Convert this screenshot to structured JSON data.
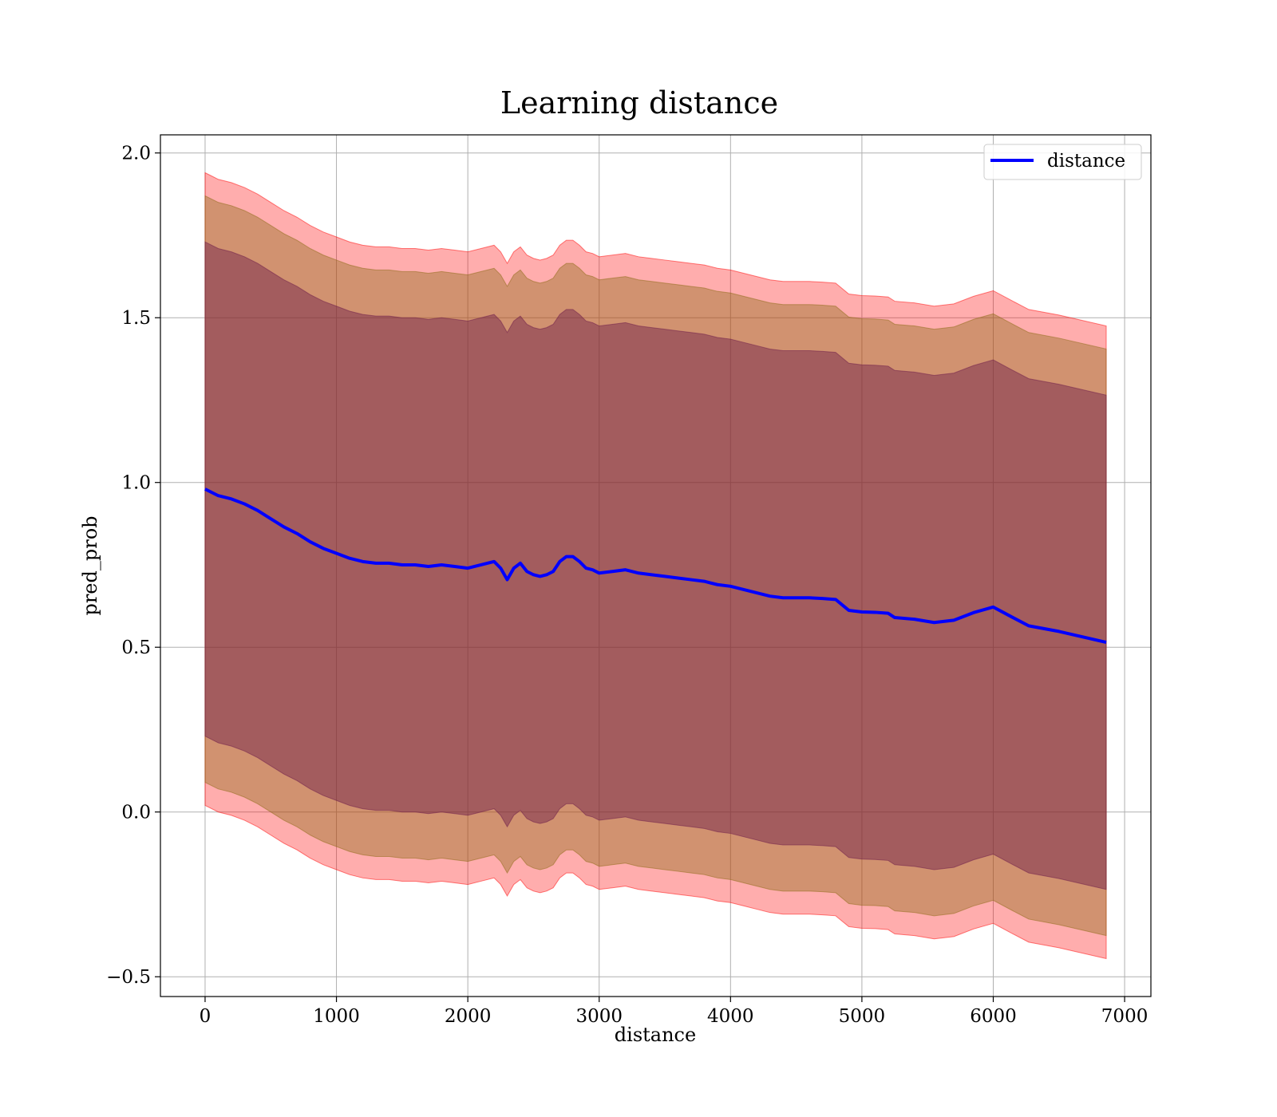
{
  "chart_data": {
    "type": "line",
    "title": "Learning distance",
    "xlabel": "distance",
    "ylabel": "pred_prob",
    "xlim": [
      -340,
      7200
    ],
    "ylim": [
      -0.56,
      2.055
    ],
    "xticks": [
      0,
      1000,
      2000,
      3000,
      4000,
      5000,
      6000,
      7000
    ],
    "xtick_labels": [
      "0",
      "1000",
      "2000",
      "3000",
      "4000",
      "5000",
      "6000",
      "7000"
    ],
    "yticks": [
      -0.5,
      0.0,
      0.5,
      1.0,
      1.5,
      2.0
    ],
    "ytick_labels": [
      "−0.5",
      "0.0",
      "0.5",
      "1.0",
      "1.5",
      "2.0"
    ],
    "grid": true,
    "legend": {
      "position": "top-right",
      "entries": [
        "distance"
      ]
    },
    "colors": {
      "line": "#0000ff",
      "band_outer": "#ff0000",
      "band_mid": "#8b6914",
      "band_inner": "#6b1a4a"
    },
    "series": [
      {
        "name": "distance",
        "x": [
          0,
          50,
          100,
          200,
          300,
          400,
          500,
          600,
          700,
          800,
          900,
          1000,
          1100,
          1200,
          1300,
          1400,
          1500,
          1600,
          1700,
          1800,
          1900,
          2000,
          2100,
          2200,
          2250,
          2300,
          2350,
          2400,
          2450,
          2500,
          2550,
          2600,
          2650,
          2700,
          2750,
          2800,
          2850,
          2900,
          2950,
          3000,
          3100,
          3200,
          3300,
          3400,
          3500,
          3600,
          3700,
          3800,
          3900,
          4000,
          4100,
          4200,
          4300,
          4400,
          4500,
          4600,
          4700,
          4800,
          4900,
          5000,
          5100,
          5200,
          5250,
          5400,
          5550,
          5700,
          5850,
          6000,
          6150,
          6270,
          6500,
          6860
        ],
        "y": [
          0.98,
          0.97,
          0.96,
          0.95,
          0.935,
          0.915,
          0.89,
          0.865,
          0.845,
          0.82,
          0.8,
          0.785,
          0.77,
          0.76,
          0.755,
          0.755,
          0.75,
          0.75,
          0.745,
          0.75,
          0.745,
          0.74,
          0.75,
          0.76,
          0.74,
          0.705,
          0.74,
          0.755,
          0.73,
          0.72,
          0.715,
          0.72,
          0.73,
          0.76,
          0.775,
          0.775,
          0.76,
          0.74,
          0.735,
          0.725,
          0.73,
          0.735,
          0.725,
          0.72,
          0.715,
          0.71,
          0.705,
          0.7,
          0.69,
          0.685,
          0.675,
          0.665,
          0.655,
          0.65,
          0.65,
          0.65,
          0.648,
          0.645,
          0.612,
          0.607,
          0.606,
          0.603,
          0.59,
          0.585,
          0.575,
          0.582,
          0.605,
          0.622,
          0.59,
          0.565,
          0.548,
          0.515
        ]
      }
    ],
    "bands": [
      {
        "lower_offset": -0.96,
        "upper_offset": 0.96,
        "fill": "#ff0000",
        "opacity": 0.32
      },
      {
        "lower_offset": -0.89,
        "upper_offset": 0.89,
        "fill": "#8b6914",
        "opacity": 0.4
      },
      {
        "lower_offset": -0.75,
        "upper_offset": 0.75,
        "fill": "#6b1a4a",
        "opacity": 0.45
      }
    ]
  }
}
